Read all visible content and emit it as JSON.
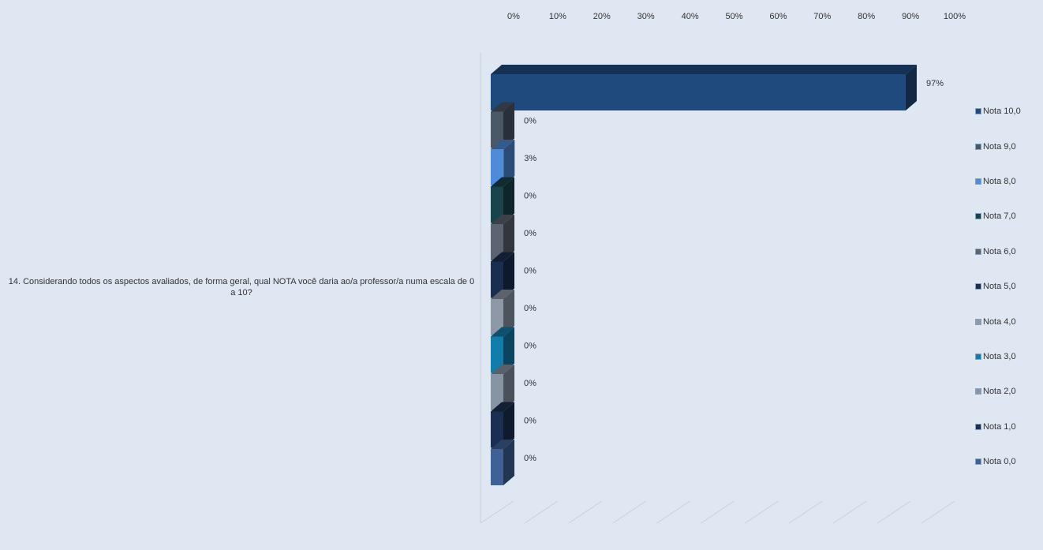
{
  "chart_data": {
    "type": "bar",
    "orientation": "horizontal",
    "3d": true,
    "category": "14. Considerando todos os aspectos avaliados, de forma geral, qual NOTA você daria ao/a professor/a numa escala de 0 a 10?",
    "series": [
      {
        "name": "Nota 10,0",
        "value": 97,
        "label": "97%",
        "color": "#1f4a7e"
      },
      {
        "name": "Nota 9,0",
        "value": 0,
        "label": "0%",
        "color": "#4a5868"
      },
      {
        "name": "Nota 8,0",
        "value": 3,
        "label": "3%",
        "color": "#4f8bd9"
      },
      {
        "name": "Nota 7,0",
        "value": 0,
        "label": "0%",
        "color": "#19444c"
      },
      {
        "name": "Nota 6,0",
        "value": 0,
        "label": "0%",
        "color": "#5b6470"
      },
      {
        "name": "Nota 5,0",
        "value": 0,
        "label": "0%",
        "color": "#1a2e4f"
      },
      {
        "name": "Nota 4,0",
        "value": 0,
        "label": "0%",
        "color": "#8e98a6"
      },
      {
        "name": "Nota 3,0",
        "value": 0,
        "label": "0%",
        "color": "#127cab"
      },
      {
        "name": "Nota 2,0",
        "value": 0,
        "label": "0%",
        "color": "#8794a4"
      },
      {
        "name": "Nota 1,0",
        "value": 0,
        "label": "0%",
        "color": "#1b2f52"
      },
      {
        "name": "Nota 0,0",
        "value": 0,
        "label": "0%",
        "color": "#3e6296"
      }
    ],
    "xaxis": {
      "ticks": [
        "0%",
        "10%",
        "20%",
        "30%",
        "40%",
        "50%",
        "60%",
        "70%",
        "80%",
        "90%",
        "100%"
      ],
      "range": [
        0,
        100
      ]
    },
    "grid": true,
    "legend_position": "right"
  }
}
